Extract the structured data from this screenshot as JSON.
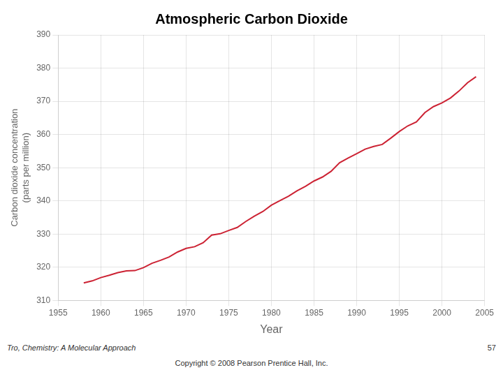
{
  "chart_data": {
    "type": "line",
    "title": "Atmospheric Carbon Dioxide",
    "xlabel": "Year",
    "ylabel": [
      "Carbon dioxide concentration",
      "(parts per million)"
    ],
    "annotations": [
      "Tro, Chemistry: A Molecular Approach",
      "57",
      "Copyright © 2008 Pearson Prentice Hall, Inc."
    ],
    "x": [
      1958,
      1959,
      1960,
      1961,
      1962,
      1963,
      1964,
      1965,
      1966,
      1967,
      1968,
      1969,
      1970,
      1971,
      1972,
      1973,
      1974,
      1975,
      1976,
      1977,
      1978,
      1979,
      1980,
      1981,
      1982,
      1983,
      1984,
      1985,
      1986,
      1987,
      1988,
      1989,
      1990,
      1991,
      1992,
      1993,
      1994,
      1995,
      1996,
      1997,
      1998,
      1999,
      2000,
      2001,
      2002,
      2003,
      2004
    ],
    "values": [
      315.3,
      315.9,
      316.9,
      317.6,
      318.4,
      318.9,
      319.0,
      319.9,
      321.2,
      322.1,
      323.1,
      324.6,
      325.7,
      326.2,
      327.4,
      329.7,
      330.1,
      331.1,
      332.0,
      333.8,
      335.4,
      336.8,
      338.7,
      340.1,
      341.4,
      343.0,
      344.4,
      346.0,
      347.2,
      348.9,
      351.5,
      352.9,
      354.2,
      355.6,
      356.4,
      357.0,
      358.9,
      360.9,
      362.6,
      363.8,
      366.6,
      368.4,
      369.5,
      371.0,
      373.1,
      375.6,
      377.4
    ],
    "color": "#cc2233",
    "xlim": [
      1955,
      2005
    ],
    "ylim": [
      310,
      390
    ],
    "xticks": [
      1955,
      1960,
      1965,
      1970,
      1975,
      1980,
      1985,
      1990,
      1995,
      2000,
      2005
    ],
    "yticks": [
      310,
      320,
      330,
      340,
      350,
      360,
      370,
      380,
      390
    ],
    "grid": true
  }
}
